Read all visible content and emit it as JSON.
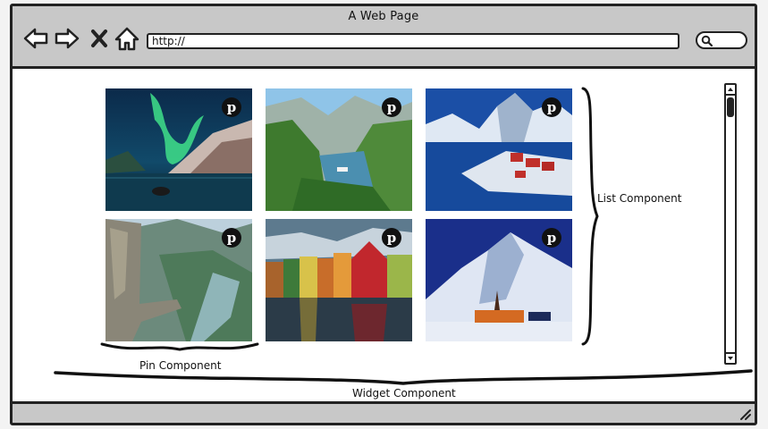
{
  "window": {
    "title": "A Web Page",
    "url": "http://",
    "nav": [
      {
        "icon": "back-arrow-icon"
      },
      {
        "icon": "forward-arrow-icon"
      },
      {
        "icon": "close-x-icon"
      },
      {
        "icon": "home-icon"
      }
    ],
    "search_icon": "search-icon"
  },
  "gallery": {
    "items": [
      {
        "alt": "Aurora borealis over fjord",
        "icon": "pinterest-icon",
        "pin_glyph": "p"
      },
      {
        "alt": "Green fjord valley with cruise ship",
        "icon": "pinterest-icon",
        "pin_glyph": "p"
      },
      {
        "alt": "Snowy mountains with red cabins",
        "icon": "pinterest-icon",
        "pin_glyph": "p"
      },
      {
        "alt": "Cliff overlooking fjord",
        "icon": "pinterest-icon",
        "pin_glyph": "p"
      },
      {
        "alt": "Colorful wooden houses on waterfront",
        "icon": "pinterest-icon",
        "pin_glyph": "p"
      },
      {
        "alt": "Snowy mountain with lit church at night",
        "icon": "pinterest-icon",
        "pin_glyph": "p"
      }
    ]
  },
  "annotations": {
    "list": "List Component",
    "pin": "Pin Component",
    "widget": "Widget Component"
  },
  "colors": {
    "chrome": "#c8c8c8",
    "outline": "#222222",
    "page": "#ffffff"
  }
}
